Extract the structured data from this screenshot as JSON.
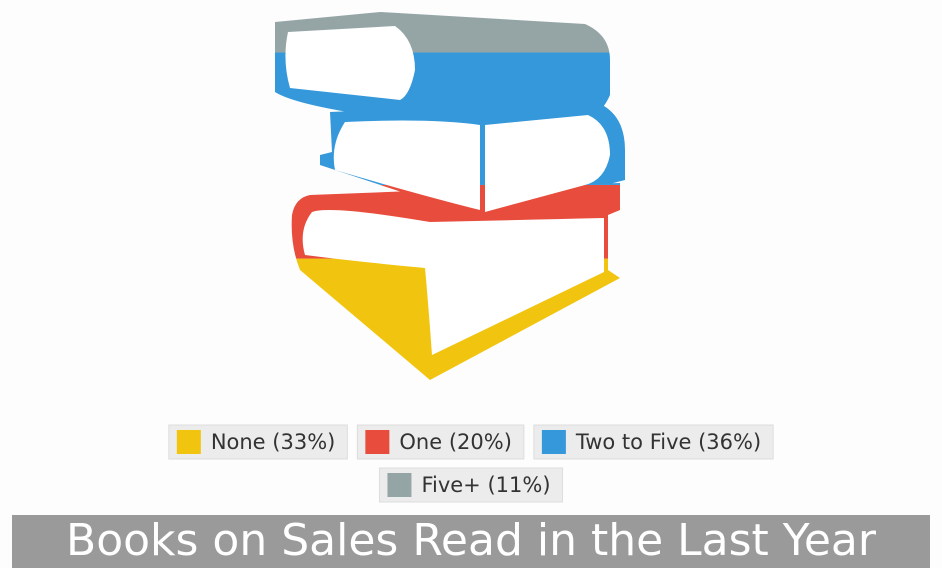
{
  "chart_data": {
    "type": "pictograph",
    "title": "Books on Sales Read in the Last Year",
    "categories": [
      "None",
      "One",
      "Two to Five",
      "Five+"
    ],
    "values": [
      33,
      20,
      36,
      11
    ],
    "value_labels": [
      "(33%)",
      "(20%)",
      "(36%)",
      "(11%)"
    ],
    "colors": [
      "#f1c40f",
      "#e74c3c",
      "#3498db",
      "#95a5a6"
    ]
  }
}
